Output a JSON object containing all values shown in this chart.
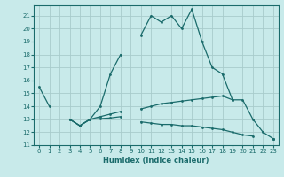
{
  "xlabel": "Humidex (Indice chaleur)",
  "bg_color": "#c8eaea",
  "grid_color": "#a8cccc",
  "line_color": "#1a6b6b",
  "xlim": [
    -0.5,
    23.5
  ],
  "ylim": [
    11,
    21.8
  ],
  "yticks": [
    11,
    12,
    13,
    14,
    15,
    16,
    17,
    18,
    19,
    20,
    21
  ],
  "xticks": [
    0,
    1,
    2,
    3,
    4,
    5,
    6,
    7,
    8,
    9,
    10,
    11,
    12,
    13,
    14,
    15,
    16,
    17,
    18,
    19,
    20,
    21,
    22,
    23
  ],
  "series": [
    {
      "x": [
        0,
        1,
        2,
        3,
        4,
        5,
        6,
        7,
        8,
        9,
        10,
        11,
        12,
        13,
        14,
        15,
        16,
        17,
        18,
        19,
        20,
        21,
        22,
        23
      ],
      "y": [
        15.5,
        14.0,
        null,
        13.0,
        12.5,
        13.0,
        14.0,
        16.5,
        18.0,
        null,
        19.5,
        21.0,
        20.5,
        21.0,
        20.0,
        21.5,
        19.0,
        17.0,
        16.5,
        14.5,
        14.5,
        13.0,
        12.0,
        11.5
      ]
    },
    {
      "x": [
        0,
        1,
        2,
        3,
        4,
        5,
        6,
        7,
        8,
        9,
        10,
        11,
        12,
        13,
        14,
        15,
        16,
        17,
        18,
        19,
        20,
        21,
        22,
        23
      ],
      "y": [
        null,
        null,
        null,
        13.0,
        12.5,
        13.0,
        13.2,
        13.4,
        13.6,
        null,
        13.8,
        14.0,
        14.2,
        14.3,
        14.4,
        14.5,
        14.6,
        14.7,
        14.8,
        14.5,
        null,
        null,
        null,
        11.5
      ]
    },
    {
      "x": [
        0,
        1,
        2,
        3,
        4,
        5,
        6,
        7,
        8,
        9,
        10,
        11,
        12,
        13,
        14,
        15,
        16,
        17,
        18,
        19,
        20,
        21,
        22,
        23
      ],
      "y": [
        null,
        null,
        null,
        13.0,
        12.5,
        13.0,
        13.05,
        13.1,
        13.2,
        null,
        12.8,
        12.7,
        12.6,
        12.6,
        12.5,
        12.5,
        12.4,
        12.3,
        12.2,
        12.0,
        11.8,
        11.7,
        null,
        11.5
      ]
    }
  ]
}
